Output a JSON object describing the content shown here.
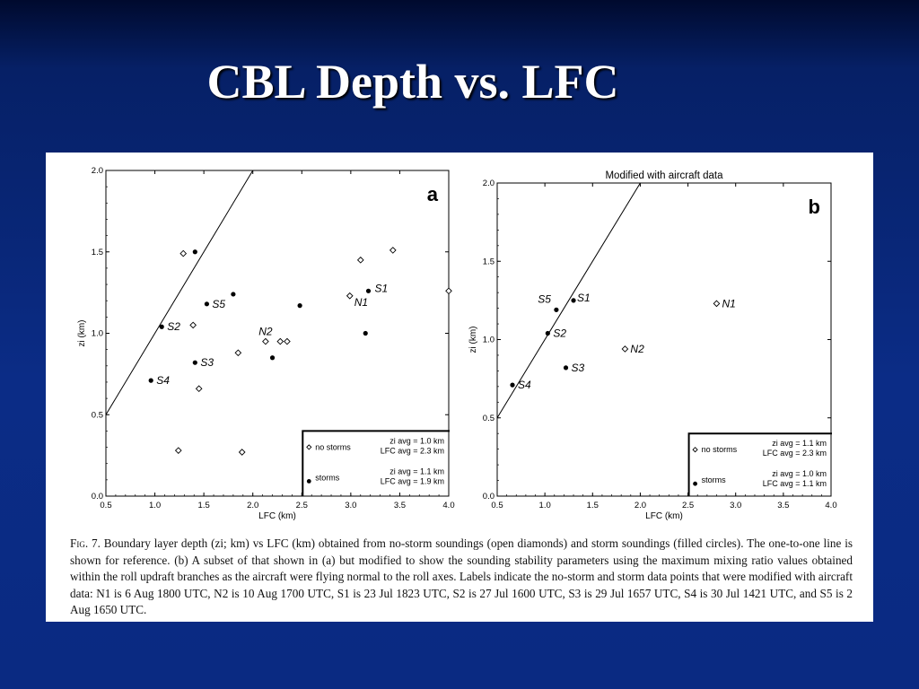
{
  "slide": {
    "title": "CBL Depth vs. LFC",
    "colors": {
      "background": "#0b2c86",
      "title_text": "#ffffff",
      "panel": "#ffffff"
    }
  },
  "caption": {
    "fig_label": "Fig. 7.",
    "text": "Boundary layer depth (zi; km) vs LFC (km) obtained from no-storm soundings (open diamonds) and storm soundings (filled circles). The one-to-one line is shown for reference. (b) A subset of that shown in (a) but modified to show the sounding stability parameters using the maximum mixing ratio values obtained within the roll updraft branches as the aircraft were flying normal to the roll axes. Labels indicate the no-storm and storm data points that were modified with aircraft data: N1 is 6 Aug 1800 UTC, N2 is 10 Aug 1700 UTC, S1 is 23 Jul 1823 UTC, S2 is 27 Jul 1600 UTC, S3 is 29 Jul 1657 UTC, S4 is 30 Jul 1421 UTC, and S5 is 2 Aug 1650 UTC."
  },
  "chart_data": [
    {
      "type": "scatter",
      "panel_label": "a",
      "title": "",
      "xlabel": "LFC (km)",
      "ylabel": "zi (km)",
      "xlim": [
        0.5,
        4.0
      ],
      "ylim": [
        0.0,
        2.0
      ],
      "xticks": [
        "0.5",
        "1.0",
        "1.5",
        "2.0",
        "2.5",
        "3.0",
        "3.5",
        "4.0"
      ],
      "yticks": [
        "0.0",
        "0.5",
        "1.0",
        "1.5",
        "2.0"
      ],
      "reference_line": "one-to-one",
      "series": [
        {
          "name": "no storms",
          "marker": "open-diamond",
          "points": [
            {
              "x": 1.29,
              "y": 1.49
            },
            {
              "x": 1.39,
              "y": 1.05
            },
            {
              "x": 1.45,
              "y": 0.66
            },
            {
              "x": 1.24,
              "y": 0.28
            },
            {
              "x": 1.85,
              "y": 0.88
            },
            {
              "x": 1.89,
              "y": 0.27
            },
            {
              "x": 2.13,
              "y": 0.95,
              "label": "N2"
            },
            {
              "x": 2.28,
              "y": 0.95
            },
            {
              "x": 2.35,
              "y": 0.95
            },
            {
              "x": 2.99,
              "y": 1.23,
              "label": "N1"
            },
            {
              "x": 3.1,
              "y": 1.45
            },
            {
              "x": 3.43,
              "y": 1.51
            },
            {
              "x": 4.0,
              "y": 1.26
            }
          ]
        },
        {
          "name": "storms",
          "marker": "filled-circle",
          "points": [
            {
              "x": 0.96,
              "y": 0.71,
              "label": "S4"
            },
            {
              "x": 1.07,
              "y": 1.04,
              "label": "S2"
            },
            {
              "x": 1.41,
              "y": 1.5
            },
            {
              "x": 1.41,
              "y": 0.82,
              "label": "S3"
            },
            {
              "x": 1.53,
              "y": 1.18,
              "label": "S5"
            },
            {
              "x": 1.8,
              "y": 1.24
            },
            {
              "x": 2.2,
              "y": 0.85
            },
            {
              "x": 2.48,
              "y": 1.17
            },
            {
              "x": 3.15,
              "y": 1.0
            },
            {
              "x": 3.18,
              "y": 1.26,
              "label": "S1"
            }
          ]
        }
      ],
      "legend": {
        "placement": "bottom-right",
        "entries": [
          {
            "symbol": "open-diamond",
            "label": "no storms",
            "stat1": "zi avg = 1.0 km",
            "stat2": "LFC avg = 2.3 km"
          },
          {
            "symbol": "filled-circle",
            "label": "storms",
            "stat1": "zi avg = 1.1 km",
            "stat2": "LFC avg = 1.9 km"
          }
        ]
      }
    },
    {
      "type": "scatter",
      "panel_label": "b",
      "title": "Modified with aircraft data",
      "xlabel": "LFC (km)",
      "ylabel": "zi (km)",
      "xlim": [
        0.5,
        4.0
      ],
      "ylim": [
        0.0,
        2.0
      ],
      "xticks": [
        "0.5",
        "1.0",
        "1.5",
        "2.0",
        "2.5",
        "3.0",
        "3.5",
        "4.0"
      ],
      "yticks": [
        "0.0",
        "0.5",
        "1.0",
        "1.5",
        "2.0"
      ],
      "reference_line": "one-to-one",
      "series": [
        {
          "name": "no storms",
          "marker": "open-diamond",
          "points": [
            {
              "x": 1.84,
              "y": 0.94,
              "label": "N2"
            },
            {
              "x": 2.8,
              "y": 1.23,
              "label": "N1"
            }
          ]
        },
        {
          "name": "storms",
          "marker": "filled-circle",
          "points": [
            {
              "x": 0.66,
              "y": 0.71,
              "label": "S4"
            },
            {
              "x": 1.03,
              "y": 1.04,
              "label": "S2"
            },
            {
              "x": 1.12,
              "y": 1.19,
              "label": "S5"
            },
            {
              "x": 1.22,
              "y": 0.82,
              "label": "S3"
            },
            {
              "x": 1.3,
              "y": 1.25,
              "label": "S1"
            }
          ]
        }
      ],
      "legend": {
        "placement": "bottom-right",
        "entries": [
          {
            "symbol": "open-diamond",
            "label": "no storms",
            "stat1": "zi avg = 1.1 km",
            "stat2": "LFC avg = 2.3 km"
          },
          {
            "symbol": "filled-circle",
            "label": "storms",
            "stat1": "zi avg = 1.0 km",
            "stat2": "LFC avg = 1.1 km"
          }
        ]
      }
    }
  ]
}
